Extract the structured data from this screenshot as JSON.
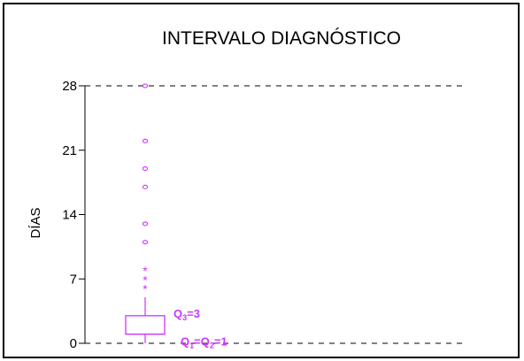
{
  "chart_data": {
    "type": "box",
    "title": "INTERVALO DIAGNÓSTICO",
    "xlabel": "",
    "ylabel": "DÍAS",
    "ylim": [
      0,
      28
    ],
    "y_ticks": [
      "0",
      "7",
      "14",
      "21",
      "28"
    ],
    "reference_lines": [
      0,
      28
    ],
    "grid": false,
    "color": "#cc33ff",
    "box": {
      "q1": 1,
      "median": 1,
      "q3": 3,
      "whisker_low": 0,
      "whisker_high": 5
    },
    "extreme_outliers": [
      8,
      7,
      6
    ],
    "outliers": [
      28,
      22,
      19,
      17,
      13,
      11
    ],
    "annotations": {
      "q3": {
        "label": "Q",
        "sub": "3",
        "value": "=3"
      },
      "q1_q2": {
        "label1": "Q",
        "sub1": "1",
        "mid": "=Q",
        "sub2": "2",
        "value": "=1"
      }
    }
  }
}
